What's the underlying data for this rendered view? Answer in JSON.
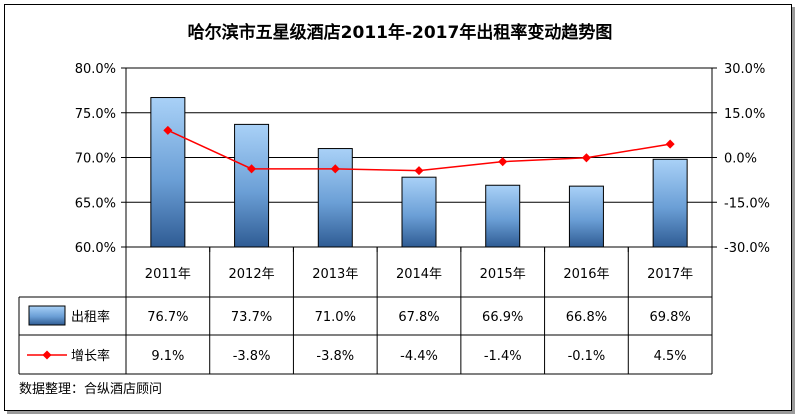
{
  "chart_data": {
    "type": "bar",
    "title": "哈尔滨市五星级酒店2011年-2017年出租率变动趋势图",
    "categories": [
      "2011年",
      "2012年",
      "2013年",
      "2014年",
      "2015年",
      "2016年",
      "2017年"
    ],
    "series": [
      {
        "name": "出租率",
        "type": "bar",
        "axis": "left",
        "values": [
          76.7,
          73.7,
          71.0,
          67.8,
          66.9,
          66.8,
          69.8
        ],
        "labels": [
          "76.7%",
          "73.7%",
          "71.0%",
          "67.8%",
          "66.9%",
          "66.8%",
          "69.8%"
        ],
        "color": "#7fb2e6"
      },
      {
        "name": "增长率",
        "type": "line",
        "axis": "right",
        "values": [
          9.1,
          -3.8,
          -3.8,
          -4.4,
          -1.4,
          -0.1,
          4.5
        ],
        "labels": [
          "9.1%",
          "-3.8%",
          "-3.8%",
          "-4.4%",
          "-1.4%",
          "-0.1%",
          "4.5%"
        ],
        "color": "#ff0000"
      }
    ],
    "ylim_left": [
      60,
      80
    ],
    "ylim_right": [
      -30,
      30
    ],
    "yticks_left": [
      "80.0%",
      "75.0%",
      "70.0%",
      "65.0%",
      "60.0%"
    ],
    "yticks_right": [
      "30.0%",
      "15.0%",
      "0.0%",
      "-15.0%",
      "-30.0%"
    ],
    "grid": true,
    "legend": "data-table",
    "source": "数据整理：合纵酒店顾问"
  }
}
